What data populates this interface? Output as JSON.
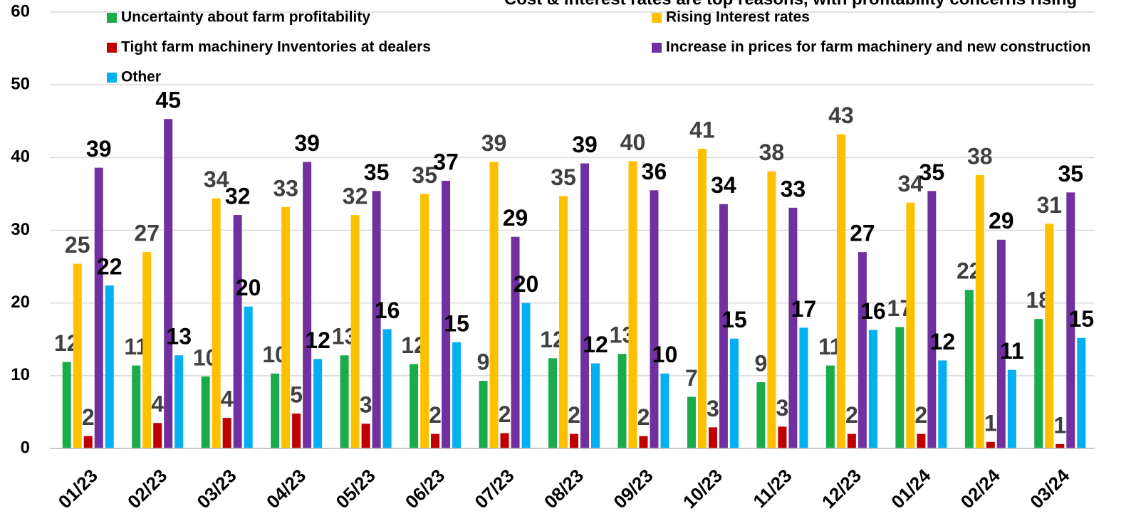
{
  "chart_data": {
    "type": "bar",
    "title": "Cost & interest rates  are top reasons, with profitability  concerns rising",
    "categories": [
      "01/23",
      "02/23",
      "03/23",
      "04/23",
      "05/23",
      "06/23",
      "07/23",
      "08/23",
      "09/23",
      "10/23",
      "11/23",
      "12/23",
      "01/24",
      "02/24",
      "03/24"
    ],
    "series": [
      {
        "name": "Uncertainty about farm profitability",
        "color": "#1aab4a",
        "label_color": "#404040",
        "values": [
          11.9,
          11.4,
          9.9,
          10.3,
          12.8,
          11.6,
          9.3,
          12.4,
          13.0,
          7.1,
          9.1,
          11.4,
          16.7,
          21.8,
          17.8
        ],
        "value_labels": [
          "12",
          "11",
          "10",
          "10",
          "13",
          "12",
          "9",
          "12",
          "13",
          "7",
          "9",
          "11",
          "17",
          "22",
          "18"
        ]
      },
      {
        "name": "Rising Interest rates",
        "color": "#ffc000",
        "label_color": "#404040",
        "values": [
          25.4,
          27.0,
          34.4,
          33.2,
          32.1,
          35.0,
          39.4,
          34.7,
          39.5,
          41.2,
          38.1,
          43.2,
          33.8,
          37.6,
          30.9
        ],
        "value_labels": [
          "25",
          "27",
          "34",
          "33",
          "32",
          "35",
          "39",
          "35",
          "40",
          "41",
          "38",
          "43",
          "34",
          "38",
          "31"
        ]
      },
      {
        "name": "Tight farm machinery Inventories at dealers",
        "color": "#c00000",
        "label_color": "#404040",
        "values": [
          1.7,
          3.5,
          4.2,
          4.8,
          3.4,
          2.0,
          2.1,
          2.0,
          1.7,
          2.9,
          3.0,
          2.0,
          2.0,
          0.9,
          0.6
        ],
        "value_labels": [
          "2",
          "4",
          "4",
          "5",
          "3",
          "2",
          "2",
          "2",
          "2",
          "3",
          "3",
          "2",
          "2",
          "1",
          "1"
        ]
      },
      {
        "name": "Increase in prices for farm machinery and new construction",
        "color": "#7030a0",
        "label_color": "#000000",
        "values": [
          38.6,
          45.3,
          32.1,
          39.4,
          35.4,
          36.8,
          29.1,
          39.2,
          35.5,
          33.6,
          33.1,
          27.0,
          35.4,
          28.7,
          35.2
        ],
        "value_labels": [
          "39",
          "45",
          "32",
          "39",
          "35",
          "37",
          "29",
          "39",
          "36",
          "34",
          "33",
          "27",
          "35",
          "29",
          "35"
        ]
      },
      {
        "name": "Other",
        "color": "#00b0f0",
        "label_color": "#000000",
        "values": [
          22.4,
          12.8,
          19.5,
          12.3,
          16.4,
          14.6,
          20.0,
          11.7,
          10.3,
          15.1,
          16.6,
          16.3,
          12.1,
          10.8,
          15.2
        ],
        "value_labels": [
          "22",
          "13",
          "20",
          "12",
          "16",
          "15",
          "20",
          "12",
          "10",
          "15",
          "17",
          "16",
          "12",
          "11",
          "15"
        ]
      }
    ],
    "ylim": [
      0,
      60
    ],
    "yticks": [
      0,
      10,
      20,
      30,
      40,
      50,
      60
    ],
    "grid": true
  }
}
